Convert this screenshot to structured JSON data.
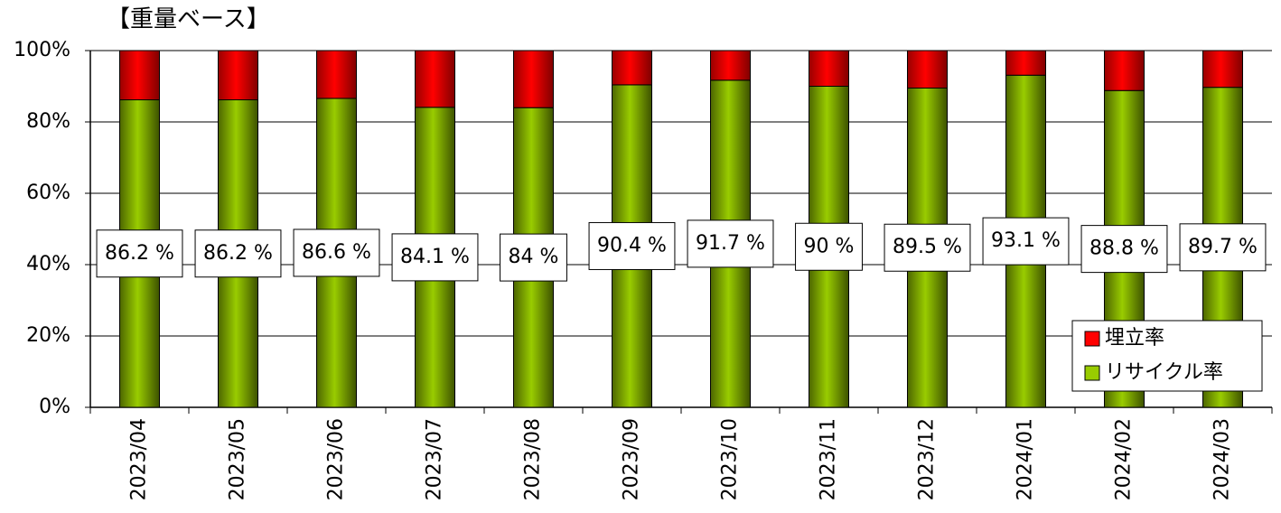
{
  "chart_data": {
    "type": "stacked_bar",
    "title": "【重量ベース】",
    "categories": [
      "2023/04",
      "2023/05",
      "2023/06",
      "2023/07",
      "2023/08",
      "2023/09",
      "2023/10",
      "2023/11",
      "2023/12",
      "2024/01",
      "2024/02",
      "2024/03"
    ],
    "series": [
      {
        "name": "リサイクル率",
        "color": "#99cc00",
        "values": [
          86.2,
          86.2,
          86.6,
          84.1,
          84,
          90.4,
          91.7,
          90,
          89.5,
          93.1,
          88.8,
          89.7
        ],
        "value_labels": [
          "86.2 %",
          "86.2 %",
          "86.6 %",
          "84.1 %",
          "84 %",
          "90.4 %",
          "91.7 %",
          "90 %",
          "89.5 %",
          "93.1 %",
          "88.8 %",
          "89.7 %"
        ]
      },
      {
        "name": "埋立率",
        "color": "#ff0000",
        "values": [
          13.8,
          13.8,
          13.4,
          15.9,
          16,
          9.6,
          8.3,
          10,
          10.5,
          6.9,
          11.2,
          10.3
        ]
      }
    ],
    "ylim": [
      0,
      100
    ],
    "yticks": [
      {
        "value": 0,
        "label": "0%"
      },
      {
        "value": 20,
        "label": "20%"
      },
      {
        "value": 40,
        "label": "40%"
      },
      {
        "value": 60,
        "label": "60%"
      },
      {
        "value": 80,
        "label": "80%"
      },
      {
        "value": 100,
        "label": "100%"
      }
    ],
    "grid": true,
    "legend": "lower right"
  }
}
